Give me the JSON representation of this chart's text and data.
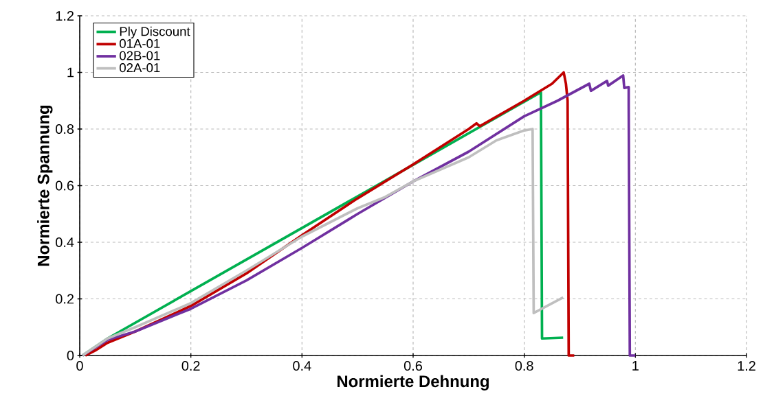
{
  "chart_data": {
    "type": "line",
    "xlabel": "Normierte Dehnung",
    "ylabel": "Normierte Spannung",
    "xlim": [
      0,
      1.2
    ],
    "ylim": [
      0,
      1.2
    ],
    "xticks": [
      0,
      0.2,
      0.4,
      0.6,
      0.8,
      1,
      1.2
    ],
    "yticks": [
      0,
      0.2,
      0.4,
      0.6,
      0.8,
      1,
      1.2
    ],
    "grid": true,
    "legend": "top left",
    "marker": "none",
    "line_style": "solid",
    "series": [
      {
        "name": "Ply Discount",
        "color": "#00b050",
        "x": [
          0.005,
          0.05,
          0.83,
          0.832,
          0.87
        ],
        "values": [
          0,
          0.06,
          0.93,
          0.06,
          0.063
        ]
      },
      {
        "name": "01A-01",
        "color": "#c00000",
        "x": [
          0.01,
          0.03,
          0.05,
          0.1,
          0.2,
          0.3,
          0.4,
          0.5,
          0.6,
          0.7,
          0.714,
          0.72,
          0.8,
          0.85,
          0.871,
          0.875,
          0.878,
          0.88,
          0.89
        ],
        "values": [
          0,
          0.02,
          0.045,
          0.085,
          0.175,
          0.29,
          0.425,
          0.555,
          0.675,
          0.8,
          0.82,
          0.81,
          0.9,
          0.96,
          1.0,
          0.96,
          0.9,
          0,
          0
        ]
      },
      {
        "name": "02B-01",
        "color": "#7030a0",
        "x": [
          0.005,
          0.05,
          0.1,
          0.2,
          0.3,
          0.4,
          0.5,
          0.6,
          0.7,
          0.8,
          0.86,
          0.917,
          0.92,
          0.949,
          0.951,
          0.978,
          0.98,
          0.988,
          0.988,
          0.99,
          1.0
        ],
        "values": [
          0,
          0.055,
          0.085,
          0.165,
          0.265,
          0.38,
          0.5,
          0.615,
          0.72,
          0.845,
          0.9,
          0.96,
          0.935,
          0.97,
          0.953,
          0.989,
          0.945,
          0.948,
          0.885,
          0,
          0
        ]
      },
      {
        "name": "02A-01",
        "color": "#bfbfbf",
        "x": [
          0.005,
          0.05,
          0.1,
          0.2,
          0.3,
          0.4,
          0.5,
          0.55,
          0.6,
          0.7,
          0.75,
          0.8,
          0.815,
          0.817,
          0.87
        ],
        "values": [
          0,
          0.06,
          0.1,
          0.185,
          0.3,
          0.42,
          0.52,
          0.56,
          0.615,
          0.7,
          0.76,
          0.795,
          0.8,
          0.15,
          0.205
        ]
      }
    ]
  }
}
